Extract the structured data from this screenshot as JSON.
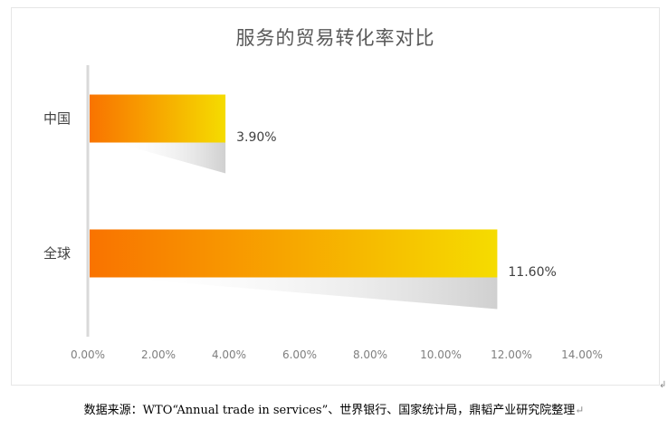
{
  "chart_data": {
    "type": "bar",
    "orientation": "horizontal",
    "title": "服务的贸易转化率对比",
    "categories": [
      "中国",
      "全球"
    ],
    "values": [
      3.9,
      11.6
    ],
    "data_labels": [
      "3.90%",
      "11.60%"
    ],
    "xlim": [
      0,
      14
    ],
    "x_tick_labels": [
      "0.00%",
      "2.00%",
      "4.00%",
      "6.00%",
      "8.00%",
      "10.00%",
      "12.00%",
      "14.00%"
    ],
    "grid": false,
    "legend": "none"
  },
  "colors": {
    "bar_start": "#f97300",
    "bar_end": "#f5dc00",
    "shadow": "#d0d0d0",
    "axis": "#d9d9d9"
  },
  "source": {
    "text": "数据来源：WTO“Annual trade in services”、世界银行、国家统计局，鼎韬产业研究院整理",
    "mark": "↵"
  },
  "corner_arrow": "↲"
}
